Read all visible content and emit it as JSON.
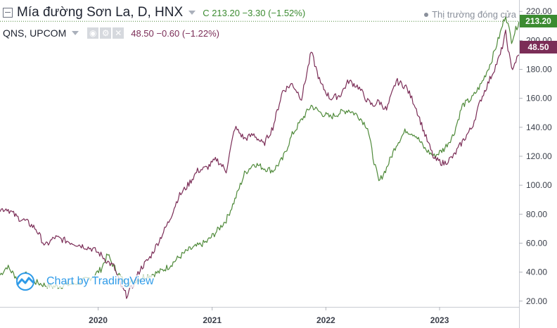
{
  "header": {
    "main_symbol": "Mía đường Sơn La, D, HNX",
    "main_values": "C 213.20  −3.30 (−1.52%)",
    "sub_symbol": "QNS, UPCOM",
    "sub_values": "48.50  −0.60 (−1.22%)",
    "status": "Thị trường đóng cửa"
  },
  "watermark": "Chart by TradingView",
  "colors": {
    "main": "#4f8a3a",
    "sub": "#7b2d57",
    "main_badge": "#3c8b31",
    "sub_badge": "#7b2d57"
  },
  "chart_data": {
    "type": "line",
    "x_ticks": [
      "2020",
      "2021",
      "2022",
      "2023"
    ],
    "y_ticks": [
      "20.00",
      "40.00",
      "60.00",
      "80.00",
      "100.00",
      "120.00",
      "140.00",
      "160.00",
      "180.00",
      "200.00",
      "220.00"
    ],
    "ylim": [
      16,
      224
    ],
    "x_range": [
      "2019-02-20",
      "2023-09-13"
    ],
    "series": [
      {
        "name": "Mía đường Sơn La",
        "last_value": "213.20",
        "points": [
          [
            "2019-02-20",
            38
          ],
          [
            "2019-03-15",
            44
          ],
          [
            "2019-04-15",
            36
          ],
          [
            "2019-05-15",
            38
          ],
          [
            "2019-06-15",
            33
          ],
          [
            "2019-07-15",
            31
          ],
          [
            "2019-08-15",
            30
          ],
          [
            "2019-09-15",
            31
          ],
          [
            "2019-10-15",
            32
          ],
          [
            "2019-11-15",
            34
          ],
          [
            "2019-12-15",
            37
          ],
          [
            "2020-01-10",
            42
          ],
          [
            "2020-02-01",
            52
          ],
          [
            "2020-02-20",
            44
          ],
          [
            "2020-03-15",
            36
          ],
          [
            "2020-04-01",
            32
          ],
          [
            "2020-04-20",
            33
          ],
          [
            "2020-05-15",
            36
          ],
          [
            "2020-06-15",
            38
          ],
          [
            "2020-07-15",
            40
          ],
          [
            "2020-08-15",
            44
          ],
          [
            "2020-09-15",
            50
          ],
          [
            "2020-10-15",
            55
          ],
          [
            "2020-11-15",
            58
          ],
          [
            "2020-12-15",
            61
          ],
          [
            "2021-01-15",
            68
          ],
          [
            "2021-02-15",
            76
          ],
          [
            "2021-03-15",
            90
          ],
          [
            "2021-04-15",
            108
          ],
          [
            "2021-05-15",
            115
          ],
          [
            "2021-06-15",
            112
          ],
          [
            "2021-07-15",
            110
          ],
          [
            "2021-08-15",
            118
          ],
          [
            "2021-09-15",
            135
          ],
          [
            "2021-10-15",
            145
          ],
          [
            "2021-11-15",
            155
          ],
          [
            "2021-12-15",
            150
          ],
          [
            "2022-01-15",
            147
          ],
          [
            "2022-02-15",
            150
          ],
          [
            "2022-03-15",
            152
          ],
          [
            "2022-04-15",
            148
          ],
          [
            "2022-05-15",
            140
          ],
          [
            "2022-06-01",
            120
          ],
          [
            "2022-06-20",
            102
          ],
          [
            "2022-07-15",
            112
          ],
          [
            "2022-08-15",
            128
          ],
          [
            "2022-09-15",
            138
          ],
          [
            "2022-10-15",
            135
          ],
          [
            "2022-11-15",
            125
          ],
          [
            "2022-12-15",
            120
          ],
          [
            "2023-01-15",
            125
          ],
          [
            "2023-02-15",
            135
          ],
          [
            "2023-03-15",
            155
          ],
          [
            "2023-04-15",
            160
          ],
          [
            "2023-05-15",
            170
          ],
          [
            "2023-06-15",
            185
          ],
          [
            "2023-07-15",
            205
          ],
          [
            "2023-08-01",
            218
          ],
          [
            "2023-08-20",
            200
          ],
          [
            "2023-09-13",
            213.2
          ]
        ]
      },
      {
        "name": "QNS",
        "last_value": "48.50",
        "points": [
          [
            "2019-02-20",
            83
          ],
          [
            "2019-03-15",
            84
          ],
          [
            "2019-04-15",
            78
          ],
          [
            "2019-05-15",
            75
          ],
          [
            "2019-06-15",
            70
          ],
          [
            "2019-07-15",
            58
          ],
          [
            "2019-08-15",
            64
          ],
          [
            "2019-09-15",
            62
          ],
          [
            "2019-10-15",
            60
          ],
          [
            "2019-11-15",
            58
          ],
          [
            "2019-12-15",
            56
          ],
          [
            "2020-01-10",
            52
          ],
          [
            "2020-02-01",
            47
          ],
          [
            "2020-02-20",
            44
          ],
          [
            "2020-03-15",
            30
          ],
          [
            "2020-04-01",
            24
          ],
          [
            "2020-04-20",
            30
          ],
          [
            "2020-05-15",
            42
          ],
          [
            "2020-06-15",
            50
          ],
          [
            "2020-07-15",
            62
          ],
          [
            "2020-08-15",
            75
          ],
          [
            "2020-09-15",
            92
          ],
          [
            "2020-10-15",
            100
          ],
          [
            "2020-11-15",
            110
          ],
          [
            "2020-12-15",
            112
          ],
          [
            "2021-01-15",
            118
          ],
          [
            "2021-02-15",
            110
          ],
          [
            "2021-03-15",
            140
          ],
          [
            "2021-04-15",
            132
          ],
          [
            "2021-05-15",
            135
          ],
          [
            "2021-06-15",
            128
          ],
          [
            "2021-07-15",
            140
          ],
          [
            "2021-08-15",
            165
          ],
          [
            "2021-09-15",
            170
          ],
          [
            "2021-10-15",
            160
          ],
          [
            "2021-11-15",
            192
          ],
          [
            "2021-12-15",
            170
          ],
          [
            "2022-01-15",
            160
          ],
          [
            "2022-02-15",
            162
          ],
          [
            "2022-03-15",
            172
          ],
          [
            "2022-04-15",
            168
          ],
          [
            "2022-05-15",
            158
          ],
          [
            "2022-06-01",
            155
          ],
          [
            "2022-06-20",
            158
          ],
          [
            "2022-07-15",
            152
          ],
          [
            "2022-08-15",
            172
          ],
          [
            "2022-09-15",
            168
          ],
          [
            "2022-10-15",
            155
          ],
          [
            "2022-11-15",
            135
          ],
          [
            "2022-12-15",
            118
          ],
          [
            "2023-01-15",
            115
          ],
          [
            "2023-02-15",
            120
          ],
          [
            "2023-03-15",
            130
          ],
          [
            "2023-04-15",
            140
          ],
          [
            "2023-05-15",
            160
          ],
          [
            "2023-06-15",
            175
          ],
          [
            "2023-07-15",
            190
          ],
          [
            "2023-08-01",
            205
          ],
          [
            "2023-08-20",
            180
          ],
          [
            "2023-09-13",
            190
          ]
        ]
      }
    ],
    "grid": false,
    "legend": "top-left"
  }
}
